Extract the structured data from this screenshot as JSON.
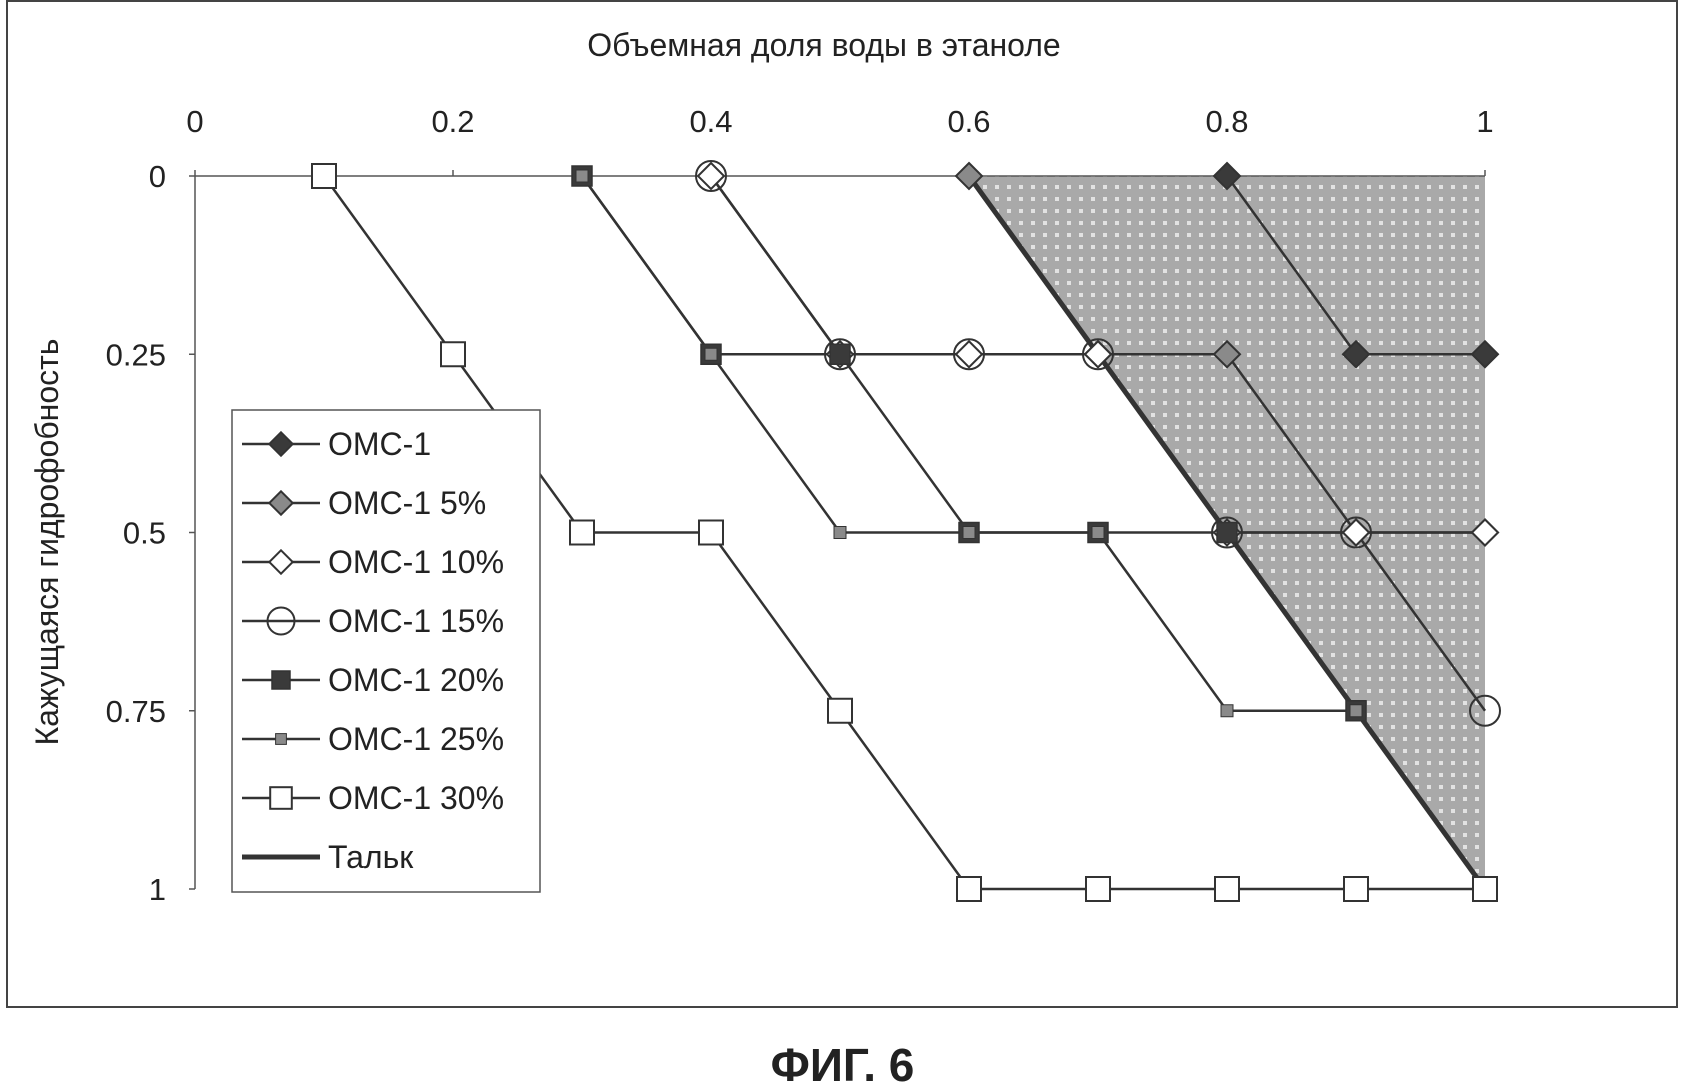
{
  "figure_caption": "ФИГ. 6",
  "colors": {
    "line": "#333333",
    "marker_dark": "#3a3a3a",
    "marker_gray": "#8a8a8a",
    "shaded_region": "#b0b0b0",
    "axis": "#555555"
  },
  "chart_data": {
    "type": "line",
    "title": "",
    "xlabel": "Объемная доля воды в этаноле",
    "ylabel": "Кажущаяся гидрофобность",
    "xlim": [
      0,
      1
    ],
    "ylim": [
      0,
      1
    ],
    "x_axis_position": "top",
    "y_axis_inverted": true,
    "x_ticks": [
      "0",
      "0.2",
      "0.4",
      "0.6",
      "0.8",
      "1"
    ],
    "y_ticks": [
      "0",
      "0.25",
      "0.5",
      "0.75",
      "1"
    ],
    "grid": false,
    "legend_position": "left",
    "shaded_region": {
      "description_source": "Тальк",
      "polygon": [
        [
          0.6,
          0
        ],
        [
          1,
          0
        ],
        [
          1,
          1
        ]
      ]
    },
    "series": [
      {
        "name": "ОМС-1",
        "marker": "diamond-filled-dark",
        "points": [
          [
            0.8,
            0
          ],
          [
            0.9,
            0.25
          ],
          [
            1,
            0.25
          ]
        ]
      },
      {
        "name": "ОМС-1 5%",
        "marker": "diamond-filled-gray",
        "points": [
          [
            0.6,
            0
          ],
          [
            0.7,
            0.25
          ],
          [
            0.8,
            0.25
          ],
          [
            0.9,
            0.5
          ],
          [
            1,
            0.5
          ]
        ]
      },
      {
        "name": "ОМС-1 10%",
        "marker": "diamond-open",
        "points": [
          [
            0.4,
            0
          ],
          [
            0.5,
            0.25
          ],
          [
            0.6,
            0.25
          ],
          [
            0.7,
            0.25
          ],
          [
            0.8,
            0.5
          ],
          [
            0.9,
            0.5
          ],
          [
            1,
            0.5
          ]
        ]
      },
      {
        "name": "ОМС-1 15%",
        "marker": "circle-open",
        "points": [
          [
            0.4,
            0
          ],
          [
            0.5,
            0.25
          ],
          [
            0.6,
            0.25
          ],
          [
            0.7,
            0.25
          ],
          [
            0.8,
            0.5
          ],
          [
            0.9,
            0.5
          ],
          [
            1,
            0.75
          ]
        ]
      },
      {
        "name": "ОМС-1 20%",
        "marker": "square-filled-dark",
        "points": [
          [
            0.3,
            0
          ],
          [
            0.4,
            0.25
          ],
          [
            0.5,
            0.25
          ],
          [
            0.6,
            0.5
          ],
          [
            0.7,
            0.5
          ],
          [
            0.8,
            0.5
          ],
          [
            0.9,
            0.75
          ],
          [
            1,
            1
          ]
        ]
      },
      {
        "name": "ОМС-1 25%",
        "marker": "square-small-gray",
        "points": [
          [
            0.3,
            0
          ],
          [
            0.4,
            0.25
          ],
          [
            0.5,
            0.5
          ],
          [
            0.6,
            0.5
          ],
          [
            0.7,
            0.5
          ],
          [
            0.8,
            0.75
          ],
          [
            0.9,
            0.75
          ],
          [
            1,
            1
          ]
        ]
      },
      {
        "name": "ОМС-1 30%",
        "marker": "square-open",
        "points": [
          [
            0.1,
            0
          ],
          [
            0.2,
            0.25
          ],
          [
            0.3,
            0.5
          ],
          [
            0.4,
            0.5
          ],
          [
            0.5,
            0.75
          ],
          [
            0.6,
            1
          ],
          [
            0.7,
            1
          ],
          [
            0.8,
            1
          ],
          [
            0.9,
            1
          ],
          [
            1,
            1
          ]
        ]
      },
      {
        "name": "Тальк",
        "marker": "none",
        "thick": true,
        "points": [
          [
            0.6,
            0
          ],
          [
            1,
            1
          ]
        ]
      }
    ]
  }
}
